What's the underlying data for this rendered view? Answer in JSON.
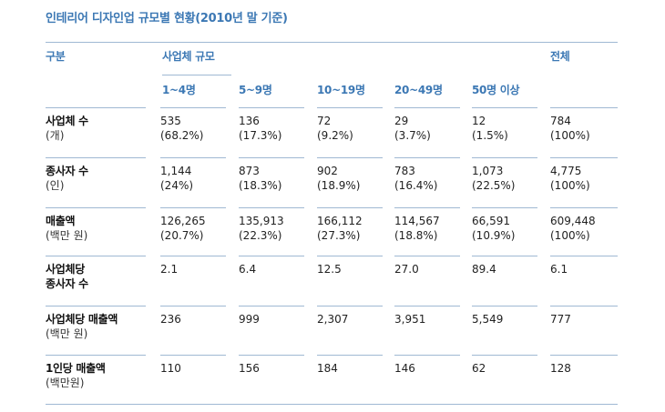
{
  "title": "인테리어 디자인업 규모별 현황(2010년 말 기준)",
  "header": {
    "category": "구분",
    "group": "사업체 규모",
    "total": "전체",
    "sizes": [
      "1~4명",
      "5~9명",
      "10~19명",
      "20~49명",
      "50명 이상"
    ]
  },
  "rows": [
    {
      "label": "사업체 수",
      "unit": "(개)",
      "values": [
        "535",
        "136",
        "72",
        "29",
        "12",
        "784"
      ],
      "pcts": [
        "(68.2%)",
        "(17.3%)",
        "(9.2%)",
        "(3.7%)",
        "(1.5%)",
        "(100%)"
      ]
    },
    {
      "label": "종사자 수",
      "unit": "(인)",
      "values": [
        "1,144",
        "873",
        "902",
        "783",
        "1,073",
        "4,775"
      ],
      "pcts": [
        "(24%)",
        "(18.3%)",
        "(18.9%)",
        "(16.4%)",
        "(22.5%)",
        "(100%)"
      ]
    },
    {
      "label": "매출액",
      "unit": "(백만 원)",
      "values": [
        "126,265",
        "135,913",
        "166,112",
        "114,567",
        "66,591",
        "609,448"
      ],
      "pcts": [
        "(20.7%)",
        "(22.3%)",
        "(27.3%)",
        "(18.8%)",
        "(10.9%)",
        "(100%)"
      ]
    },
    {
      "label": "사업체당",
      "label2": "종사자 수",
      "values": [
        "2.1",
        "6.4",
        "12.5",
        "27.0",
        "89.4",
        "6.1"
      ]
    },
    {
      "label": "사업체당 매출액",
      "unit": "(백만 원)",
      "values": [
        "236",
        "999",
        "2,307",
        "3,951",
        "5,549",
        "777"
      ]
    },
    {
      "label": "1인당 매출액",
      "unit": "(백만원)",
      "values": [
        "110",
        "156",
        "184",
        "146",
        "62",
        "128"
      ]
    }
  ],
  "colors": {
    "accent": "#3c78b4",
    "rule": "#9fb8d3"
  }
}
